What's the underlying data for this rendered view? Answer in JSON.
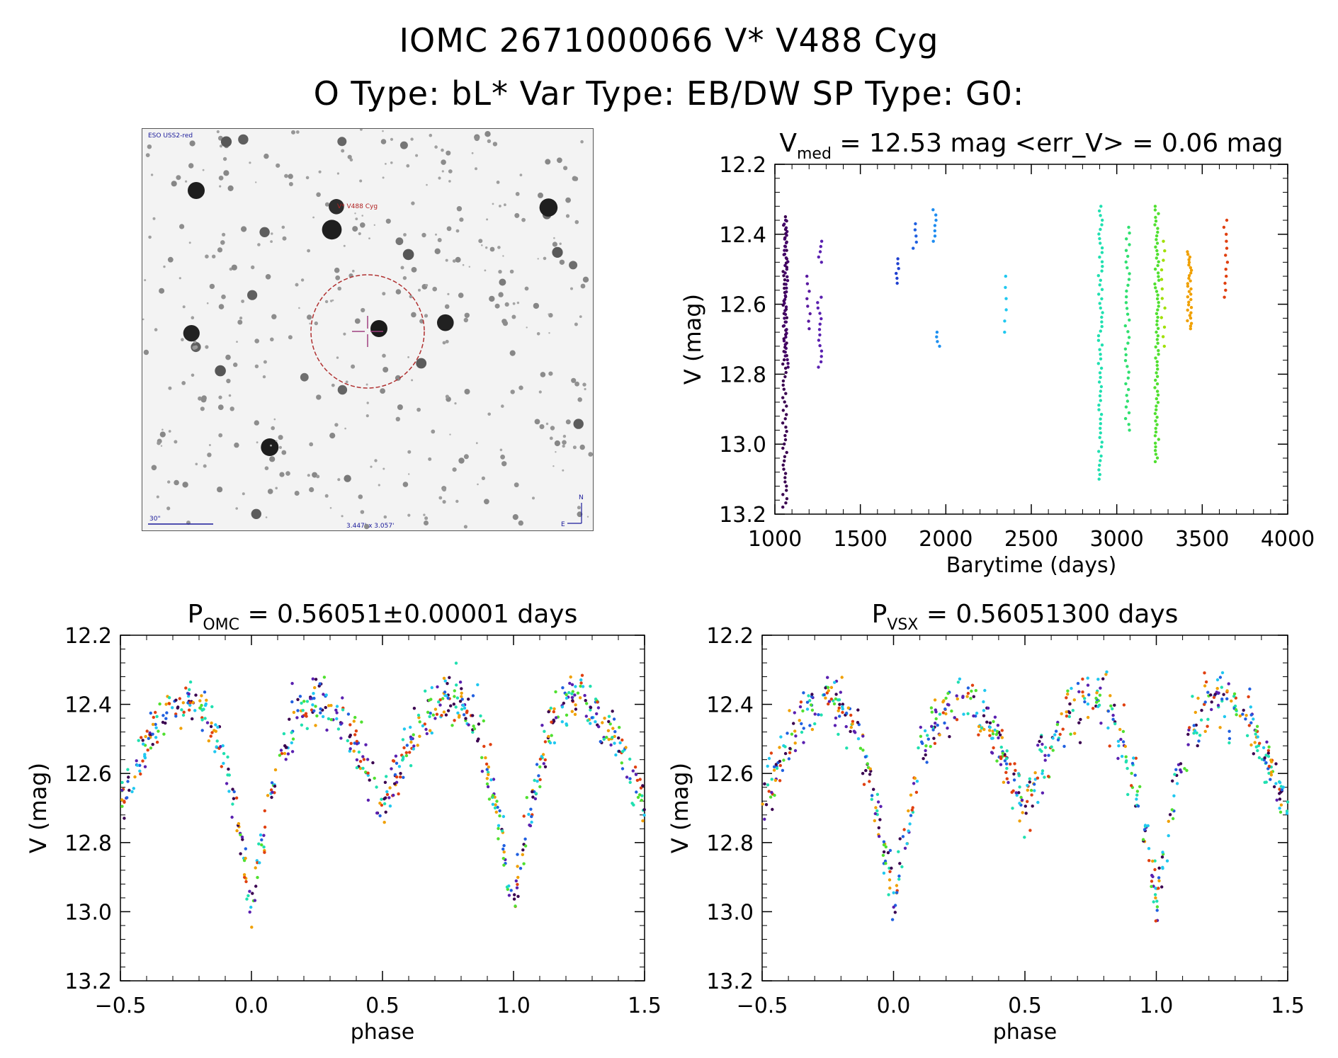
{
  "header": {
    "title_line1": "IOMC 2671000066   V* V488 Cyg",
    "title_line2": "O Type: bL*  Var Type: EB/DW  SP Type: G0:"
  },
  "image_panel": {
    "survey_label": "ESO USS2-red",
    "target_label": "V* V488 Cyg",
    "scale_label": "30\"",
    "size_label": "3.447' x 3.057'",
    "north_label": "N",
    "east_label": "E"
  },
  "colors": {
    "axis": "#000000",
    "target_circle": "#b03030",
    "crosshair": "#a04080",
    "label_blue": "#1a1a9a",
    "label_red": "#b02020"
  },
  "chart_data": [
    {
      "id": "lightcurve",
      "type": "scatter",
      "title": "V",
      "title_sub": "med",
      "title_rest": " = 12.53 mag <err_V> = 0.06 mag",
      "xlabel": "Barytime (days)",
      "ylabel": "V (mag)",
      "xlim": [
        1000,
        4000
      ],
      "ylim": [
        12.2,
        13.2
      ],
      "y_inverted": true,
      "xticks": [
        "1000",
        "1500",
        "2000",
        "2500",
        "3000",
        "3500",
        "4000"
      ],
      "yticks": [
        "12.2",
        "12.4",
        "12.6",
        "12.8",
        "13.0",
        "13.2"
      ],
      "groups": [
        {
          "x": 1058,
          "ymin": 12.35,
          "ymax": 13.18,
          "n": 70,
          "color": "#3a0050"
        },
        {
          "x": 1066,
          "ymin": 12.36,
          "ymax": 12.78,
          "n": 40,
          "color": "#44006a"
        },
        {
          "x": 1195,
          "ymin": 12.52,
          "ymax": 12.67,
          "n": 8,
          "color": "#5a1aa0"
        },
        {
          "x": 1262,
          "ymin": 12.42,
          "ymax": 12.48,
          "n": 5,
          "color": "#5a20b0"
        },
        {
          "x": 1262,
          "ymin": 12.58,
          "ymax": 12.78,
          "n": 14,
          "color": "#5a20b0"
        },
        {
          "x": 1715,
          "ymin": 12.47,
          "ymax": 12.54,
          "n": 6,
          "color": "#2040d0"
        },
        {
          "x": 1820,
          "ymin": 12.37,
          "ymax": 12.44,
          "n": 5,
          "color": "#2060e0"
        },
        {
          "x": 1935,
          "ymin": 12.33,
          "ymax": 12.42,
          "n": 7,
          "color": "#1e8cf0"
        },
        {
          "x": 1955,
          "ymin": 12.68,
          "ymax": 12.72,
          "n": 4,
          "color": "#1e90f0"
        },
        {
          "x": 2345,
          "ymin": 12.52,
          "ymax": 12.68,
          "n": 6,
          "color": "#20c8f0"
        },
        {
          "x": 2905,
          "ymin": 12.32,
          "ymax": 13.1,
          "n": 60,
          "color": "#20e0b0"
        },
        {
          "x": 3062,
          "ymin": 12.38,
          "ymax": 12.96,
          "n": 36,
          "color": "#30e070"
        },
        {
          "x": 3235,
          "ymin": 12.32,
          "ymax": 13.05,
          "n": 70,
          "color": "#50e030"
        },
        {
          "x": 3272,
          "ymin": 12.42,
          "ymax": 12.72,
          "n": 12,
          "color": "#a0e000"
        },
        {
          "x": 3425,
          "ymin": 12.45,
          "ymax": 12.67,
          "n": 30,
          "color": "#f0a000"
        },
        {
          "x": 3635,
          "ymin": 12.36,
          "ymax": 12.58,
          "n": 12,
          "color": "#e04010"
        }
      ]
    },
    {
      "id": "phase_omc",
      "type": "scatter",
      "title": "P",
      "title_sub": "OMC",
      "title_rest": " = 0.56051±0.00001 days",
      "xlabel": "phase",
      "ylabel": "V (mag)",
      "xlim": [
        -0.5,
        1.5
      ],
      "ylim": [
        12.2,
        13.2
      ],
      "y_inverted": true,
      "xticks": [
        "−0.5",
        "0.0",
        "0.5",
        "1.0",
        "1.5"
      ],
      "yticks": [
        "12.2",
        "12.4",
        "12.6",
        "12.8",
        "13.0",
        "13.2"
      ],
      "curve": {
        "max1_phase": 0.25,
        "max_mag": 12.38,
        "min1_mag": 13.0,
        "min2_mag": 12.7,
        "scatter": 0.06
      }
    },
    {
      "id": "phase_vsx",
      "type": "scatter",
      "title": "P",
      "title_sub": "VSX",
      "title_rest": " = 0.56051300 days",
      "xlabel": "phase",
      "ylabel": "V (mag)",
      "xlim": [
        -0.5,
        1.5
      ],
      "ylim": [
        12.2,
        13.2
      ],
      "y_inverted": true,
      "xticks": [
        "−0.5",
        "0.0",
        "0.5",
        "1.0",
        "1.5"
      ],
      "yticks": [
        "12.2",
        "12.4",
        "12.6",
        "12.8",
        "13.0",
        "13.2"
      ],
      "curve": {
        "max1_phase": 0.25,
        "max_mag": 12.38,
        "min1_mag": 12.98,
        "min2_mag": 12.7,
        "scatter": 0.07
      }
    }
  ]
}
